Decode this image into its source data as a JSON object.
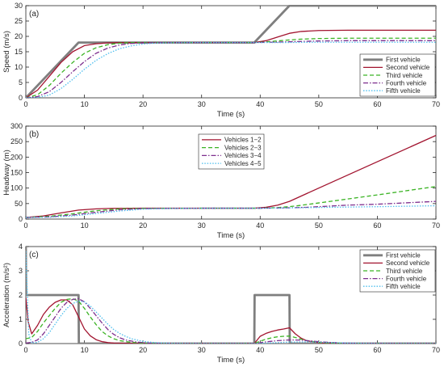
{
  "chart_data": [
    {
      "type": "line",
      "panel_label": "(a)",
      "xlabel": "Time (s)",
      "ylabel": "Speed (m/s)",
      "xlim": [
        0,
        70
      ],
      "ylim": [
        0,
        30
      ],
      "xticks": [
        0,
        10,
        20,
        30,
        40,
        50,
        60,
        70
      ],
      "yticks": [
        0,
        5,
        10,
        15,
        20,
        25,
        30
      ],
      "legend_position": "right",
      "series": [
        {
          "name": "First vehicle",
          "color": "#7f7f7f",
          "dash": "solid",
          "x": [
            0,
            9,
            39,
            45,
            70
          ],
          "y": [
            0,
            18,
            18,
            30,
            30
          ]
        },
        {
          "name": "Second vehicle",
          "color": "#a2142f",
          "dash": "solid",
          "x": [
            0,
            2,
            4,
            6,
            8,
            10,
            12,
            14,
            16,
            20,
            30,
            39,
            41,
            43,
            45,
            47,
            50,
            55,
            60,
            70
          ],
          "y": [
            0,
            2.5,
            7,
            11.5,
            15,
            17,
            17.6,
            17.9,
            18,
            18,
            18,
            18,
            18.6,
            19.8,
            21,
            21.6,
            21.9,
            22,
            22,
            22
          ]
        },
        {
          "name": "Third vehicle",
          "color": "#3bb324",
          "dash": "dashed",
          "x": [
            0,
            2,
            4,
            6,
            8,
            10,
            12,
            14,
            16,
            18,
            20,
            25,
            30,
            39,
            41,
            44,
            47,
            50,
            55,
            60,
            70
          ],
          "y": [
            0,
            1,
            4,
            8,
            11.5,
            14.5,
            16.3,
            17.3,
            17.8,
            18,
            18,
            18,
            18,
            18,
            18.2,
            18.7,
            19.1,
            19.3,
            19.4,
            19.4,
            19.4
          ]
        },
        {
          "name": "Fourth vehicle",
          "color": "#7e2f8e",
          "dash": "dashdot",
          "x": [
            0,
            2,
            4,
            6,
            8,
            10,
            12,
            14,
            16,
            18,
            20,
            24,
            30,
            39,
            42,
            46,
            50,
            55,
            60,
            70
          ],
          "y": [
            0,
            0.4,
            2,
            5,
            8.5,
            11.8,
            14.5,
            16.2,
            17.2,
            17.7,
            17.9,
            18,
            18,
            18,
            18.1,
            18.3,
            18.5,
            18.6,
            18.6,
            18.6
          ]
        },
        {
          "name": "Fifth vehicle",
          "color": "#4dbeee",
          "dash": "dotted",
          "x": [
            0,
            2,
            4,
            6,
            8,
            10,
            12,
            14,
            16,
            18,
            20,
            22,
            26,
            30,
            39,
            44,
            50,
            60,
            70
          ],
          "y": [
            0,
            0.1,
            0.9,
            3,
            6,
            9.3,
            12.2,
            14.4,
            16,
            16.9,
            17.5,
            17.8,
            17.95,
            18,
            18,
            18,
            18.1,
            18.1,
            18.1
          ]
        }
      ]
    },
    {
      "type": "line",
      "panel_label": "(b)",
      "xlabel": "Time (s)",
      "ylabel": "Headway (m)",
      "xlim": [
        0,
        70
      ],
      "ylim": [
        0,
        300
      ],
      "xticks": [
        0,
        10,
        20,
        30,
        40,
        50,
        60,
        70
      ],
      "yticks": [
        0,
        50,
        100,
        150,
        200,
        250,
        300
      ],
      "legend_position": "top-center",
      "series": [
        {
          "name": "Vehicles 1−2",
          "color": "#a2142f",
          "dash": "solid",
          "x": [
            0,
            3,
            6,
            9,
            12,
            15,
            20,
            30,
            39,
            41,
            43,
            45,
            50,
            60,
            70
          ],
          "y": [
            5,
            10,
            20,
            29,
            33,
            34.5,
            35,
            35,
            35,
            38,
            45,
            57,
            100,
            185,
            270
          ]
        },
        {
          "name": "Vehicles 2−3",
          "color": "#3bb324",
          "dash": "dashed",
          "x": [
            0,
            4,
            8,
            12,
            16,
            20,
            30,
            40,
            43,
            46,
            50,
            60,
            70
          ],
          "y": [
            5,
            9,
            17,
            27,
            33,
            34.5,
            35,
            35,
            37,
            42,
            52,
            78,
            105
          ]
        },
        {
          "name": "Vehicles 3−4",
          "color": "#7e2f8e",
          "dash": "dashdot",
          "x": [
            0,
            4,
            8,
            12,
            16,
            20,
            30,
            40,
            44,
            48,
            55,
            60,
            70
          ],
          "y": [
            5,
            7,
            13,
            22,
            30,
            34,
            35,
            35,
            36,
            38,
            45,
            48,
            57
          ]
        },
        {
          "name": "Vehicles 4−5",
          "color": "#4dbeee",
          "dash": "dotted",
          "x": [
            0,
            4,
            8,
            12,
            16,
            20,
            25,
            30,
            40,
            45,
            50,
            60,
            70
          ],
          "y": [
            5,
            6,
            10,
            18,
            26,
            32,
            34.5,
            35,
            35,
            36,
            37.5,
            40,
            43
          ]
        }
      ]
    },
    {
      "type": "line",
      "panel_label": "(c)",
      "xlabel": "Time (s)",
      "ylabel": "Acceleration (m/s²)",
      "xlim": [
        0,
        70
      ],
      "ylim": [
        0,
        4
      ],
      "xticks": [
        0,
        10,
        20,
        30,
        40,
        50,
        60,
        70
      ],
      "yticks": [
        0,
        1,
        2,
        3,
        4
      ],
      "legend_position": "top-right",
      "series": [
        {
          "name": "First vehicle",
          "color": "#7f7f7f",
          "dash": "solid",
          "x": [
            0,
            0.05,
            9,
            9.05,
            39,
            39.05,
            45,
            45.05,
            70
          ],
          "y": [
            4,
            2,
            2,
            0,
            0,
            2,
            2,
            0,
            0
          ]
        },
        {
          "name": "Second vehicle",
          "color": "#a2142f",
          "dash": "solid",
          "x": [
            0,
            0.4,
            1,
            2,
            3,
            4,
            5,
            6,
            7,
            8,
            9,
            10,
            11,
            12,
            13,
            14,
            15,
            17,
            20,
            25,
            30,
            39,
            40,
            41,
            42,
            43,
            44,
            45,
            46,
            47,
            48,
            50,
            52,
            55,
            70
          ],
          "y": [
            1.9,
            0.9,
            0.4,
            0.75,
            1.2,
            1.5,
            1.7,
            1.8,
            1.8,
            1.6,
            1.1,
            0.6,
            0.32,
            0.16,
            0.08,
            0.04,
            0.02,
            0.01,
            0,
            0,
            0,
            0,
            0.3,
            0.42,
            0.5,
            0.56,
            0.6,
            0.65,
            0.4,
            0.22,
            0.11,
            0.04,
            0.01,
            0,
            0
          ]
        },
        {
          "name": "Third vehicle",
          "color": "#3bb324",
          "dash": "dashed",
          "x": [
            0,
            1,
            2,
            3,
            4,
            5,
            6,
            7,
            8,
            9,
            10,
            11,
            12,
            13,
            14,
            15,
            16,
            18,
            20,
            25,
            30,
            39,
            40,
            41,
            42,
            43,
            44,
            45,
            46,
            47,
            48,
            50,
            53,
            56,
            70
          ],
          "y": [
            0.2,
            0.25,
            0.5,
            0.85,
            1.15,
            1.45,
            1.7,
            1.82,
            1.85,
            1.75,
            1.45,
            1.1,
            0.78,
            0.5,
            0.32,
            0.2,
            0.12,
            0.05,
            0.02,
            0,
            0,
            0,
            0.1,
            0.18,
            0.24,
            0.28,
            0.3,
            0.31,
            0.25,
            0.18,
            0.12,
            0.05,
            0.01,
            0,
            0
          ]
        },
        {
          "name": "Fourth vehicle",
          "color": "#7e2f8e",
          "dash": "dashdot",
          "x": [
            0,
            1,
            2,
            3,
            4,
            5,
            6,
            7,
            8,
            9,
            10,
            11,
            12,
            13,
            14,
            15,
            16,
            17,
            19,
            21,
            25,
            30,
            39,
            41,
            43,
            45,
            47,
            49,
            51,
            54,
            57,
            70
          ],
          "y": [
            0.02,
            0.05,
            0.15,
            0.4,
            0.75,
            1.1,
            1.45,
            1.7,
            1.82,
            1.85,
            1.72,
            1.45,
            1.15,
            0.85,
            0.58,
            0.38,
            0.24,
            0.15,
            0.06,
            0.02,
            0,
            0,
            0,
            0.07,
            0.12,
            0.15,
            0.14,
            0.1,
            0.06,
            0.02,
            0.005,
            0
          ]
        },
        {
          "name": "Fifth vehicle",
          "color": "#4dbeee",
          "dash": "dotted",
          "x": [
            0,
            0.5,
            1,
            2,
            3,
            4,
            5,
            6,
            7,
            8,
            9,
            10,
            11,
            12,
            13,
            14,
            15,
            16,
            17,
            18,
            20,
            22,
            25,
            30,
            39,
            42,
            45,
            48,
            51,
            55,
            60,
            70
          ],
          "y": [
            3.8,
            0.4,
            0.02,
            0.05,
            0.2,
            0.45,
            0.8,
            1.15,
            1.45,
            1.65,
            1.75,
            1.72,
            1.55,
            1.3,
            1.05,
            0.8,
            0.58,
            0.42,
            0.3,
            0.2,
            0.09,
            0.04,
            0.01,
            0,
            0,
            0.03,
            0.06,
            0.07,
            0.05,
            0.02,
            0.005,
            0
          ]
        }
      ]
    }
  ]
}
